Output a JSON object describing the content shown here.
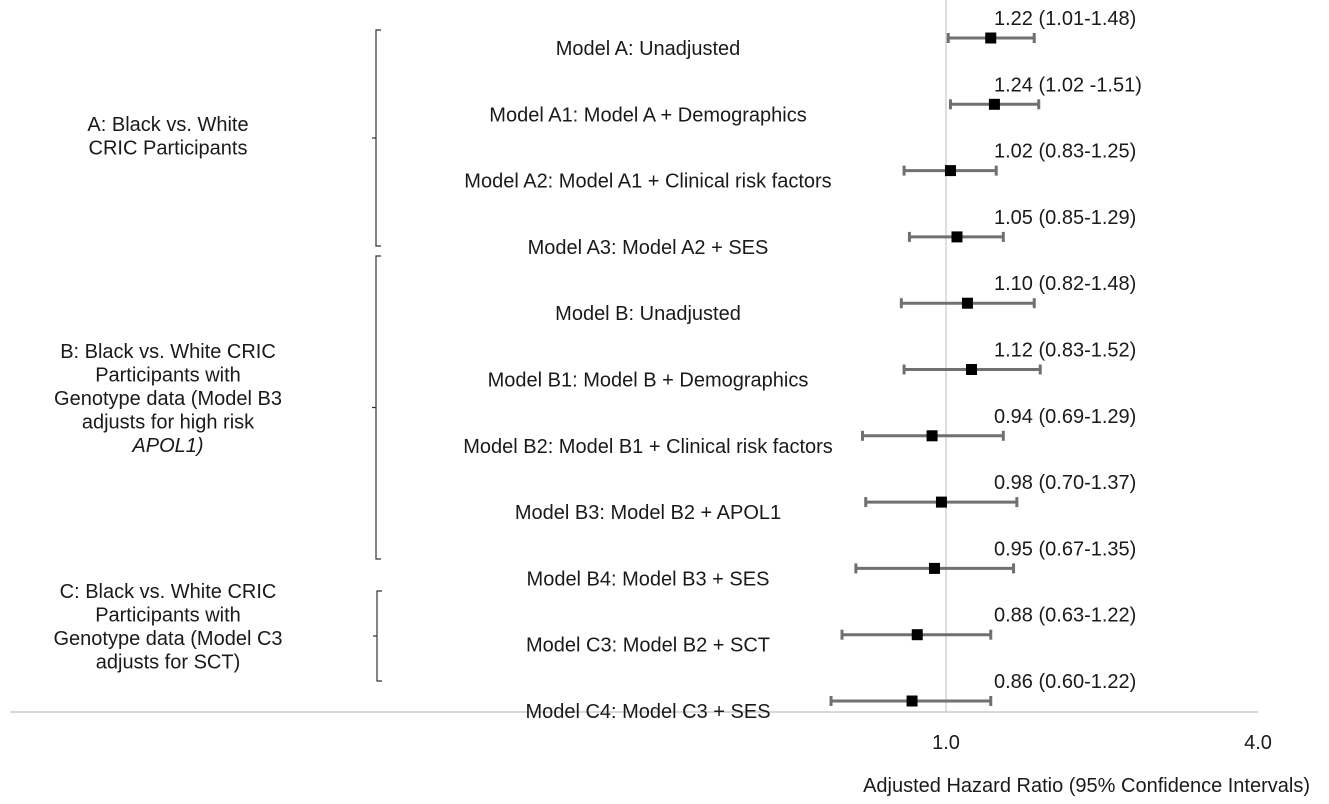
{
  "chart_data": {
    "type": "forest",
    "xlabel": "Adjusted Hazard Ratio (95% Confidence Intervals)",
    "x_scale": "log",
    "x_ticks": [
      {
        "value": 1.0,
        "label": "1.0"
      },
      {
        "value": 4.0,
        "label": "4.0"
      }
    ],
    "reference_line": 1.0,
    "groups": [
      {
        "label_lines": [
          "A: Black vs. White",
          "CRIC Participants"
        ],
        "rows": [
          0,
          3
        ]
      },
      {
        "label_lines": [
          "B: Black vs. White CRIC",
          "Participants with",
          "Genotype data (Model B3",
          "adjusts for high risk",
          "APOL1)"
        ],
        "italic_line": 4,
        "rows": [
          4,
          8
        ]
      },
      {
        "label_lines": [
          "C: Black vs. White CRIC",
          "Participants with",
          "Genotype data (Model C3",
          "adjusts for SCT)"
        ],
        "rows": [
          9,
          10
        ]
      }
    ],
    "rows": [
      {
        "label": "Model A: Unadjusted",
        "hr": 1.22,
        "lo": 1.01,
        "hi": 1.48,
        "text": "1.22 (1.01-1.48)"
      },
      {
        "label": "Model A1: Model A + Demographics",
        "hr": 1.24,
        "lo": 1.02,
        "hi": 1.51,
        "text": "1.24 (1.02 -1.51)"
      },
      {
        "label": "Model A2: Model A1 + Clinical risk factors",
        "hr": 1.02,
        "lo": 0.83,
        "hi": 1.25,
        "text": "1.02 (0.83-1.25)"
      },
      {
        "label": "Model A3: Model A2 + SES",
        "hr": 1.05,
        "lo": 0.85,
        "hi": 1.29,
        "text": "1.05 (0.85-1.29)"
      },
      {
        "label": "Model B: Unadjusted",
        "hr": 1.1,
        "lo": 0.82,
        "hi": 1.48,
        "text": "1.10 (0.82-1.48)"
      },
      {
        "label": "Model B1: Model B + Demographics",
        "hr": 1.12,
        "lo": 0.83,
        "hi": 1.52,
        "text": "1.12 (0.83-1.52)"
      },
      {
        "label": "Model B2: Model B1 + Clinical risk factors",
        "hr": 0.94,
        "lo": 0.69,
        "hi": 1.29,
        "text": "0.94 (0.69-1.29)"
      },
      {
        "label": "Model B3: Model B2 + APOL1",
        "hr": 0.98,
        "lo": 0.7,
        "hi": 1.37,
        "text": "0.98 (0.70-1.37)"
      },
      {
        "label": "Model B4: Model B3 + SES",
        "hr": 0.95,
        "lo": 0.67,
        "hi": 1.35,
        "text": "0.95 (0.67-1.35)"
      },
      {
        "label": "Model C3: Model B2 + SCT",
        "hr": 0.88,
        "lo": 0.63,
        "hi": 1.22,
        "text": "0.88 (0.63-1.22)"
      },
      {
        "label": "Model C4: Model C3 + SES",
        "hr": 0.86,
        "lo": 0.6,
        "hi": 1.22,
        "text": "0.86 (0.60-1.22)"
      }
    ],
    "colors": {
      "point": "#000000",
      "ci": "#707070",
      "reference": "#c8c8c8",
      "axis": "#c0c0c0"
    }
  }
}
